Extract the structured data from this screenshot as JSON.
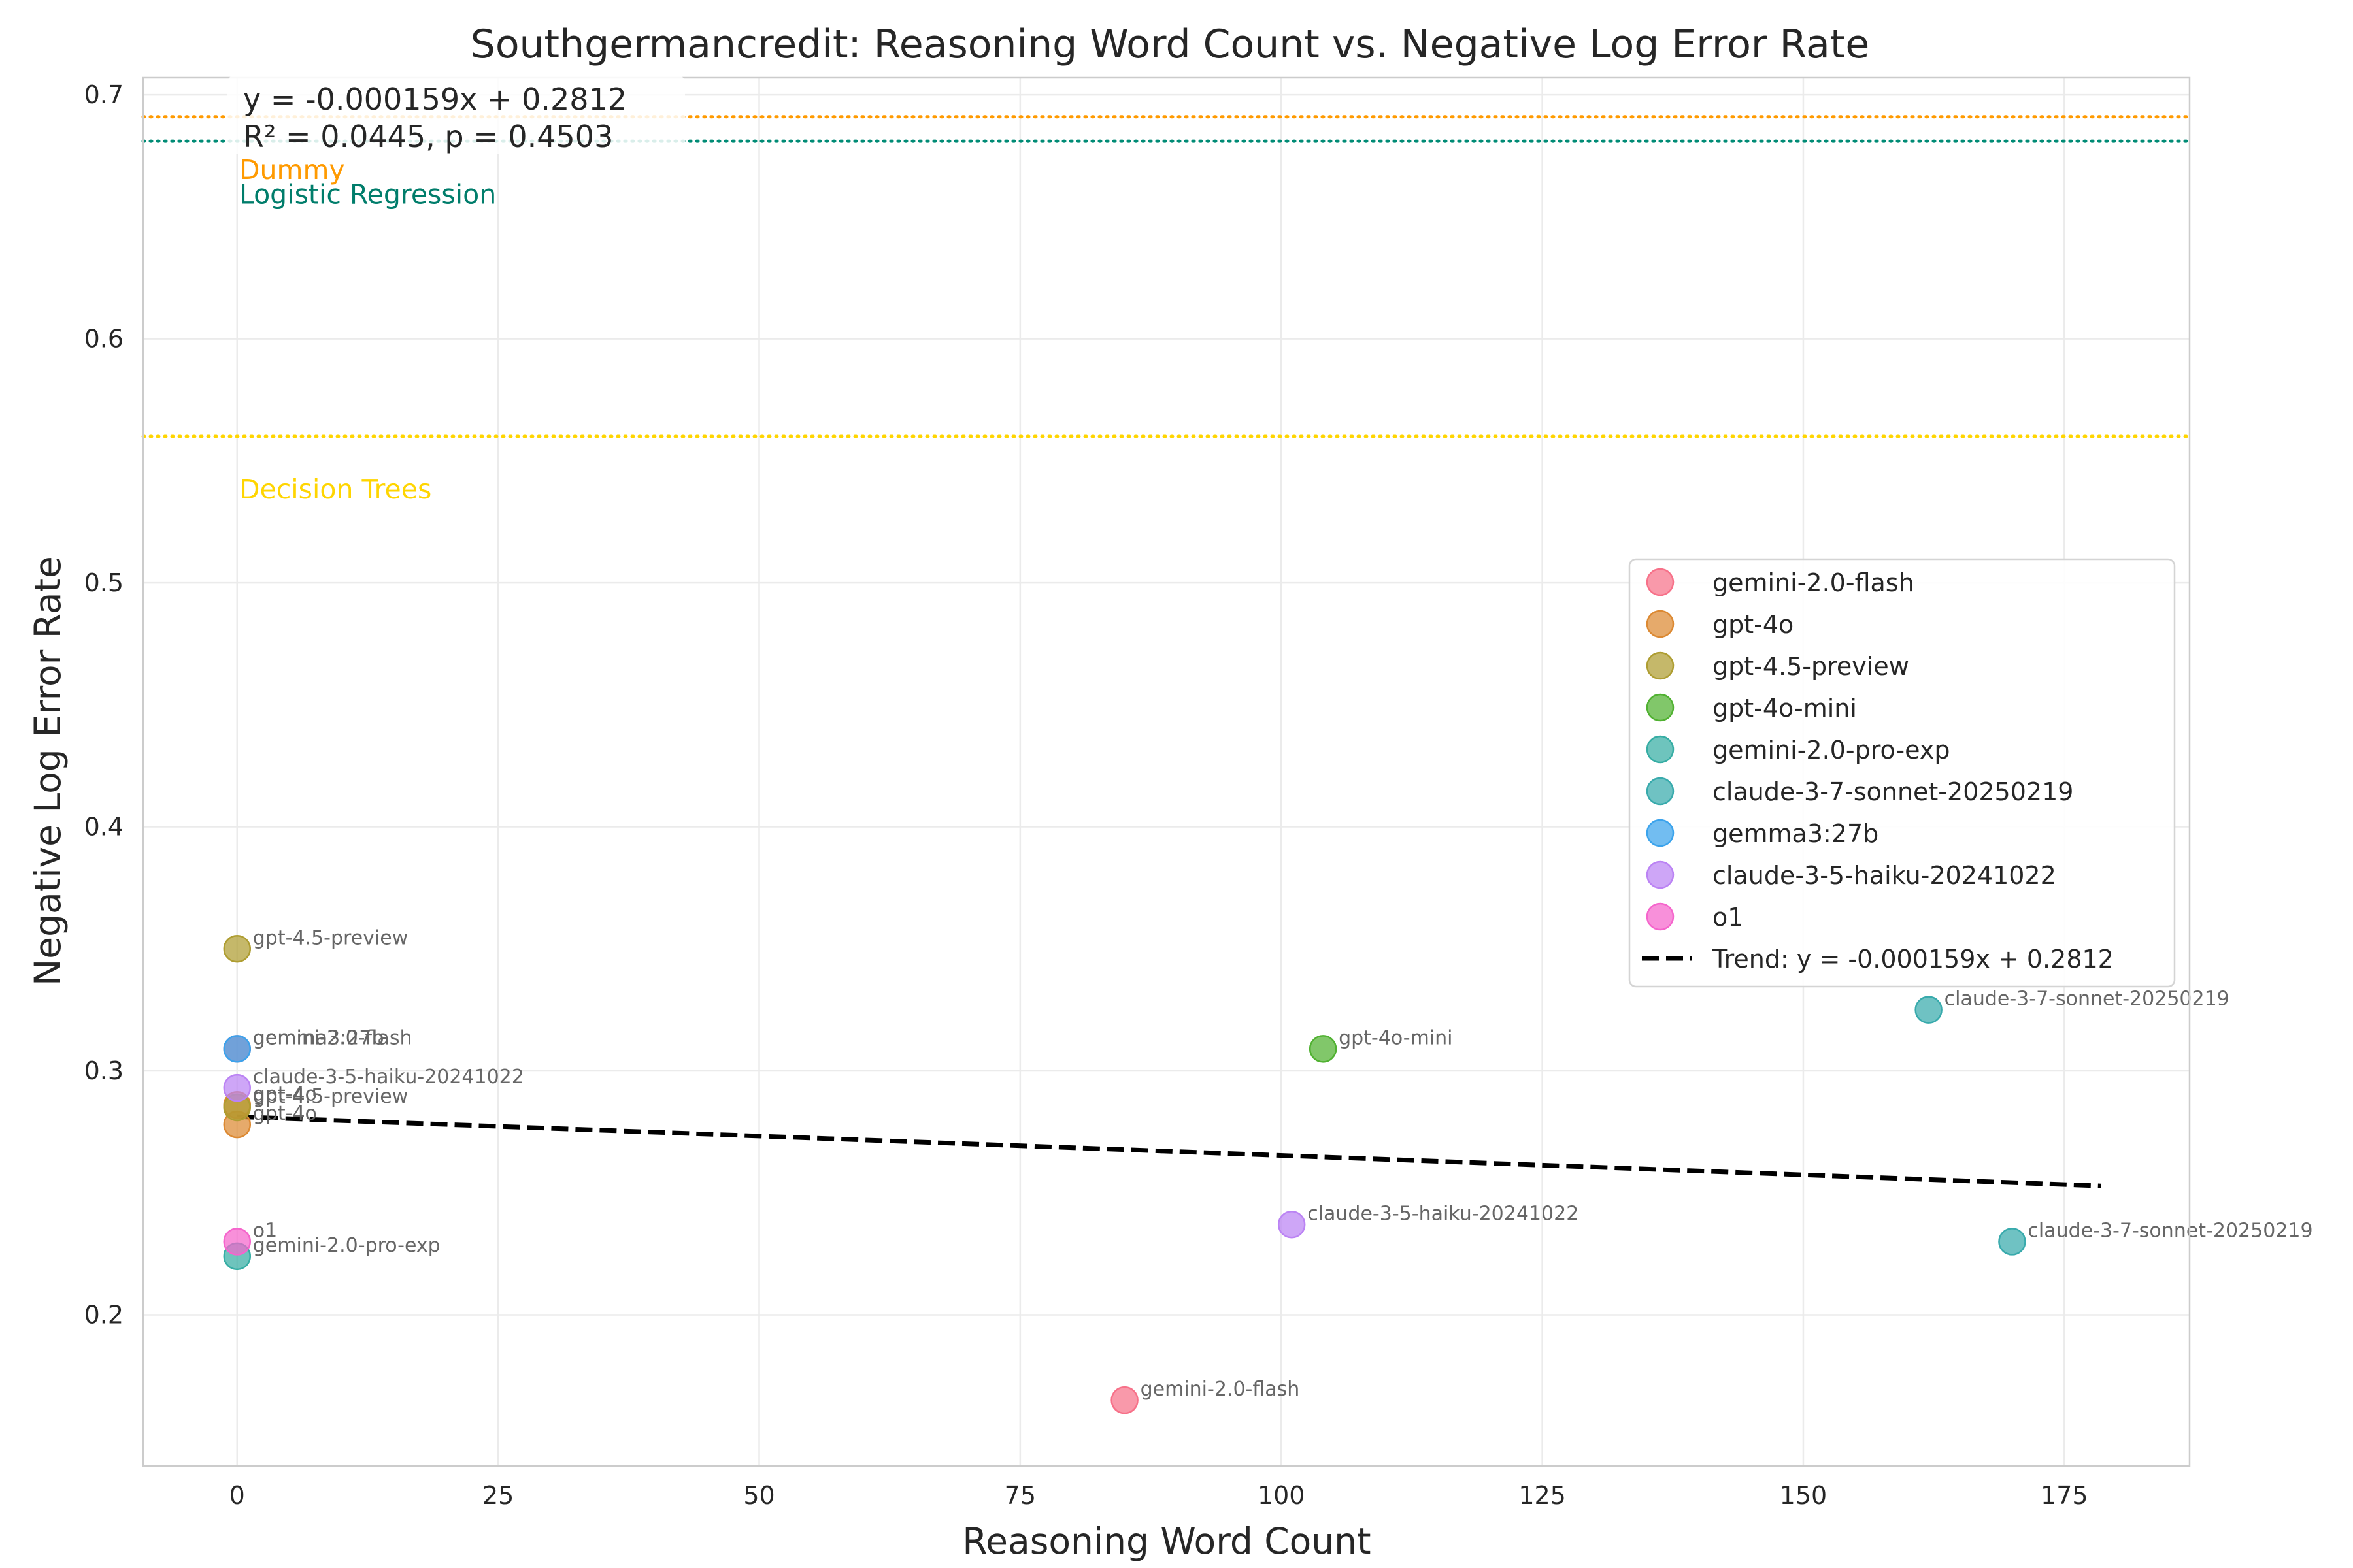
{
  "chart_data": {
    "type": "scatter",
    "title": "Southgermancredit: Reasoning Word Count vs. Negative Log Error Rate",
    "xlabel": "Reasoning Word Count",
    "ylabel": "Negative Log Error Rate",
    "xlim": [
      -9,
      187
    ],
    "ylim": [
      0.138,
      0.707
    ],
    "xticks": [
      0,
      25,
      50,
      75,
      100,
      125,
      150,
      175
    ],
    "yticks": [
      0.2,
      0.3,
      0.4,
      0.5,
      0.6,
      0.7
    ],
    "grid": true,
    "legend_position": "center-right",
    "series": [
      {
        "name": "gemini-2.0-flash",
        "color": "#f77189",
        "points": [
          {
            "x": 0,
            "y": 0.309,
            "label": "gemini-2.0-flash"
          },
          {
            "x": 85,
            "y": 0.165,
            "label": "gemini-2.0-flash"
          }
        ]
      },
      {
        "name": "gpt-4o",
        "color": "#dc8932",
        "points": [
          {
            "x": 0,
            "y": 0.286,
            "label": "gpt-4o"
          },
          {
            "x": 0,
            "y": 0.278,
            "label": "gpt-4o"
          }
        ]
      },
      {
        "name": "gpt-4.5-preview",
        "color": "#ae9d31",
        "points": [
          {
            "x": 0,
            "y": 0.35,
            "label": "gpt-4.5-preview"
          },
          {
            "x": 0,
            "y": 0.285,
            "label": "gpt-4.5-preview"
          }
        ]
      },
      {
        "name": "gpt-4o-mini",
        "color": "#50b131",
        "points": [
          {
            "x": 104,
            "y": 0.309,
            "label": "gpt-4o-mini"
          }
        ]
      },
      {
        "name": "gemini-2.0-pro-exp",
        "color": "#36ada4",
        "points": [
          {
            "x": 0,
            "y": 0.224,
            "label": "gemini-2.0-pro-exp"
          }
        ]
      },
      {
        "name": "claude-3-7-sonnet-20250219",
        "color": "#38aaac",
        "points": [
          {
            "x": 162,
            "y": 0.325,
            "label": "claude-3-7-sonnet-20250219"
          },
          {
            "x": 170,
            "y": 0.23,
            "label": "claude-3-7-sonnet-20250219"
          }
        ]
      },
      {
        "name": "gemma3:27b",
        "color": "#3ba3ec",
        "points": [
          {
            "x": 0,
            "y": 0.309,
            "label": "gemma3:27b"
          }
        ]
      },
      {
        "name": "claude-3-5-haiku-20241022",
        "color": "#bb83f4",
        "points": [
          {
            "x": 0,
            "y": 0.293,
            "label": "claude-3-5-haiku-20241022"
          },
          {
            "x": 101,
            "y": 0.237,
            "label": "claude-3-5-haiku-20241022"
          }
        ]
      },
      {
        "name": "o1",
        "color": "#f565cc",
        "points": [
          {
            "x": 0,
            "y": 0.23,
            "label": "o1"
          }
        ]
      }
    ],
    "trend": {
      "slope": -0.000159,
      "intercept": 0.2812,
      "x_range": [
        0,
        178.5
      ],
      "legend_label": "Trend: y = -0.000159x + 0.2812",
      "color": "#000000"
    },
    "baselines": [
      {
        "name": "Dummy",
        "y": 0.691,
        "color": "#ff9a00"
      },
      {
        "name": "Logistic Regression",
        "y": 0.681,
        "color": "#008b75"
      },
      {
        "name": "Decision Trees",
        "y": 0.56,
        "color": "#ffd500"
      }
    ],
    "annotation": {
      "line1": "y = -0.000159x + 0.2812",
      "line2": "R² = 0.0445, p = 0.4503"
    }
  }
}
